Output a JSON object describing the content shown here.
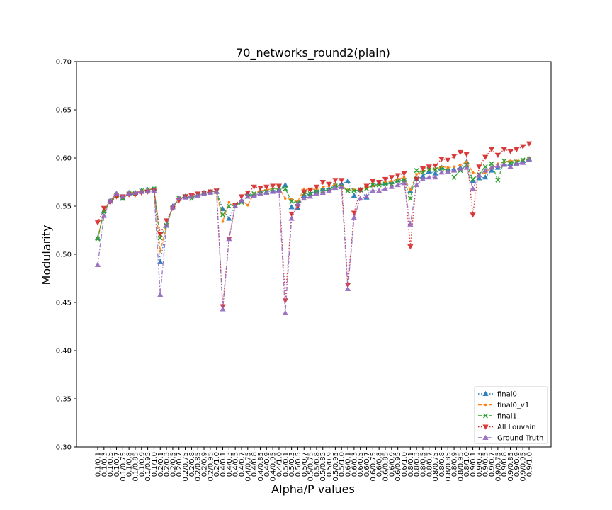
{
  "chart_data": {
    "type": "line",
    "title": "70_networks_round2(plain)",
    "xlabel": "Alpha/P values",
    "ylabel": "Modularity",
    "ylim": [
      0.3,
      0.7
    ],
    "yticks": [
      "0.30",
      "0.35",
      "0.40",
      "0.45",
      "0.50",
      "0.55",
      "0.60",
      "0.65",
      "0.70"
    ],
    "legend_position": "lower-right",
    "grid": false,
    "categories": [
      "0.1/0.1",
      "0.1/0.3",
      "0.1/0.5",
      "0.1/0.7",
      "0.1/0.75",
      "0.1/0.8",
      "0.1/0.85",
      "0.1/0.9",
      "0.1/0.95",
      "0.1/1.0",
      "0.2/0.1",
      "0.2/0.3",
      "0.2/0.5",
      "0.2/0.7",
      "0.2/0.75",
      "0.2/0.8",
      "0.2/0.85",
      "0.2/0.9",
      "0.2/0.95",
      "0.2/1.0",
      "0.4/0.1",
      "0.4/0.3",
      "0.4/0.5",
      "0.4/0.7",
      "0.4/0.75",
      "0.4/0.8",
      "0.4/0.85",
      "0.4/0.9",
      "0.4/0.95",
      "0.4/1.0",
      "0.5/0.1",
      "0.5/0.3",
      "0.5/0.5",
      "0.5/0.7",
      "0.5/0.75",
      "0.5/0.8",
      "0.5/0.85",
      "0.5/0.9",
      "0.5/0.95",
      "0.5/1.0",
      "0.6/0.1",
      "0.6/0.3",
      "0.6/0.5",
      "0.6/0.7",
      "0.6/0.75",
      "0.6/0.8",
      "0.6/0.85",
      "0.6/0.9",
      "0.6/0.95",
      "0.6/1.0",
      "0.8/0.1",
      "0.8/0.3",
      "0.8/0.5",
      "0.8/0.7",
      "0.8/0.75",
      "0.8/0.8",
      "0.8/0.85",
      "0.8/0.9",
      "0.8/0.95",
      "0.8/1.0",
      "0.9/0.1",
      "0.9/0.3",
      "0.9/0.5",
      "0.9/0.7",
      "0.9/0.75",
      "0.9/0.8",
      "0.9/0.85",
      "0.9/0.9",
      "0.9/0.95",
      "0.9/1.0"
    ],
    "tick_labels_shown": [
      "0.1/0.1",
      "0.1/0.3",
      "0.1/0.5",
      "0.1/0.7",
      "0.1/0.75",
      "0.1/0.8",
      "0.1/0.85",
      "0.1/0.9",
      "0.1/0.95",
      "0.1/1.0",
      "0.2/0.1",
      "0.2/0.3",
      "0.2/0.5",
      "0.2/0.7",
      "0.2/0.75",
      "0.2/0.8",
      "0.2/0.85",
      "0.2/0.9",
      "0.2/0.95",
      "0.2/1.0",
      "0.4/0.1",
      "0.4/0.3",
      "0.4/0.5",
      "0.4/0.7",
      "0.4/0.75",
      "0.4/0.8",
      "0.4/0.85",
      "0.4/0.9",
      "0.4/0.95",
      "0.4/1.0",
      "0.5/0.1",
      "0.5/0.3",
      "0.5/0.5",
      "0.5/0.7",
      "0.5/0.75",
      "0.5/0.8",
      "0.5/0.85",
      "0.5/0.9",
      "0.5/0.95",
      "0.5/1.0",
      "0.6/0.1",
      "0.6/0.3",
      "0.6/0.5",
      "0.6/0.7",
      "0.6/0.75",
      "0.6/0.8",
      "0.6/0.85",
      "0.6/0.9",
      "0.6/0.95",
      "0.6/1.0",
      "0.8/0.1",
      "0.8/0.3",
      "0.8/0.5",
      "0.8/0.7",
      "0.8/0.75",
      "0.8/0.8",
      "0.8/0.85",
      "0.8/0.9",
      "0.8/0.95",
      "0.8/1.0",
      "0.9/0.1",
      "0.9/0.3",
      "0.9/0.5",
      "0.9/0.7",
      "0.9/0.75",
      "0.9/0.8",
      "0.9/0.85",
      "0.9/0.9",
      "0.9/0.95",
      "0.9/1.0"
    ],
    "series": [
      {
        "name": "final0",
        "color": "#1f77b4",
        "linestyle": "dotted",
        "marker": "triangle-up",
        "values": [
          0.517,
          0.545,
          0.556,
          0.563,
          0.558,
          0.564,
          0.564,
          0.566,
          0.567,
          0.568,
          0.492,
          0.53,
          0.55,
          0.558,
          0.56,
          0.56,
          0.562,
          0.564,
          0.565,
          0.565,
          0.547,
          0.537,
          0.55,
          0.555,
          0.563,
          0.562,
          0.566,
          0.565,
          0.566,
          0.567,
          0.572,
          0.549,
          0.548,
          0.561,
          0.563,
          0.566,
          0.568,
          0.568,
          0.572,
          0.573,
          0.576,
          0.561,
          0.567,
          0.559,
          0.572,
          0.574,
          0.574,
          0.575,
          0.577,
          0.578,
          0.566,
          0.578,
          0.581,
          0.586,
          0.584,
          0.59,
          0.588,
          0.588,
          0.59,
          0.596,
          0.576,
          0.579,
          0.58,
          0.587,
          0.59,
          0.593,
          0.594,
          0.595,
          0.597,
          0.599
        ]
      },
      {
        "name": "final0_v1",
        "color": "#ff7f0e",
        "linestyle": "dashed",
        "marker": "point",
        "values": [
          0.517,
          0.545,
          0.556,
          0.563,
          0.558,
          0.564,
          0.564,
          0.566,
          0.567,
          0.568,
          0.503,
          0.53,
          0.55,
          0.557,
          0.56,
          0.561,
          0.563,
          0.564,
          0.565,
          0.565,
          0.534,
          0.554,
          0.55,
          0.556,
          0.551,
          0.563,
          0.566,
          0.567,
          0.568,
          0.569,
          0.558,
          0.557,
          0.555,
          0.568,
          0.567,
          0.568,
          0.57,
          0.571,
          0.572,
          0.571,
          0.567,
          0.567,
          0.568,
          0.569,
          0.571,
          0.573,
          0.575,
          0.576,
          0.578,
          0.58,
          0.567,
          0.583,
          0.586,
          0.589,
          0.588,
          0.591,
          0.59,
          0.591,
          0.593,
          0.596,
          0.585,
          0.583,
          0.585,
          0.59,
          0.594,
          0.596,
          0.597,
          0.597,
          0.598,
          0.6
        ]
      },
      {
        "name": "final1",
        "color": "#2ca02c",
        "linestyle": "dashed",
        "marker": "x",
        "values": [
          0.516,
          0.544,
          0.555,
          0.561,
          0.558,
          0.563,
          0.563,
          0.566,
          0.567,
          0.568,
          0.517,
          0.53,
          0.549,
          0.558,
          0.56,
          0.558,
          0.562,
          0.563,
          0.565,
          0.566,
          0.541,
          0.55,
          0.551,
          0.554,
          0.56,
          0.563,
          0.564,
          0.565,
          0.567,
          0.569,
          0.568,
          0.555,
          0.553,
          0.563,
          0.563,
          0.565,
          0.566,
          0.567,
          0.571,
          0.57,
          0.566,
          0.566,
          0.567,
          0.568,
          0.572,
          0.572,
          0.573,
          0.573,
          0.576,
          0.577,
          0.558,
          0.587,
          0.585,
          0.588,
          0.588,
          0.589,
          0.587,
          0.58,
          0.587,
          0.593,
          0.578,
          0.583,
          0.591,
          0.594,
          0.577,
          0.597,
          0.595,
          0.596,
          0.598,
          0.599
        ]
      },
      {
        "name": "All Louvain",
        "color": "#d62728",
        "linestyle": "dotted",
        "marker": "triangle-down",
        "values": [
          0.533,
          0.548,
          0.554,
          0.56,
          0.56,
          0.562,
          0.562,
          0.564,
          0.565,
          0.566,
          0.521,
          0.535,
          0.548,
          0.556,
          0.56,
          0.561,
          0.563,
          0.564,
          0.565,
          0.566,
          0.446,
          0.516,
          0.551,
          0.56,
          0.564,
          0.57,
          0.569,
          0.57,
          0.571,
          0.571,
          0.452,
          0.542,
          0.55,
          0.565,
          0.567,
          0.57,
          0.575,
          0.573,
          0.577,
          0.577,
          0.468,
          0.543,
          0.567,
          0.571,
          0.576,
          0.575,
          0.578,
          0.58,
          0.582,
          0.584,
          0.508,
          0.578,
          0.589,
          0.591,
          0.592,
          0.599,
          0.598,
          0.602,
          0.606,
          0.604,
          0.541,
          0.591,
          0.601,
          0.609,
          0.603,
          0.609,
          0.607,
          0.609,
          0.612,
          0.615
        ]
      },
      {
        "name": "Ground Truth",
        "color": "#9467bd",
        "linestyle": "dashdot",
        "marker": "triangle-up",
        "values": [
          0.489,
          0.54,
          0.556,
          0.563,
          0.56,
          0.563,
          0.564,
          0.565,
          0.566,
          0.566,
          0.458,
          0.53,
          0.549,
          0.558,
          0.559,
          0.56,
          0.561,
          0.563,
          0.564,
          0.565,
          0.443,
          0.516,
          0.55,
          0.556,
          0.56,
          0.561,
          0.563,
          0.564,
          0.565,
          0.566,
          0.439,
          0.537,
          0.552,
          0.558,
          0.56,
          0.563,
          0.564,
          0.566,
          0.569,
          0.57,
          0.464,
          0.538,
          0.558,
          0.56,
          0.566,
          0.566,
          0.568,
          0.57,
          0.572,
          0.574,
          0.531,
          0.572,
          0.578,
          0.58,
          0.58,
          0.585,
          0.586,
          0.587,
          0.589,
          0.59,
          0.568,
          0.582,
          0.587,
          0.59,
          0.592,
          0.593,
          0.591,
          0.594,
          0.595,
          0.598
        ]
      }
    ]
  }
}
